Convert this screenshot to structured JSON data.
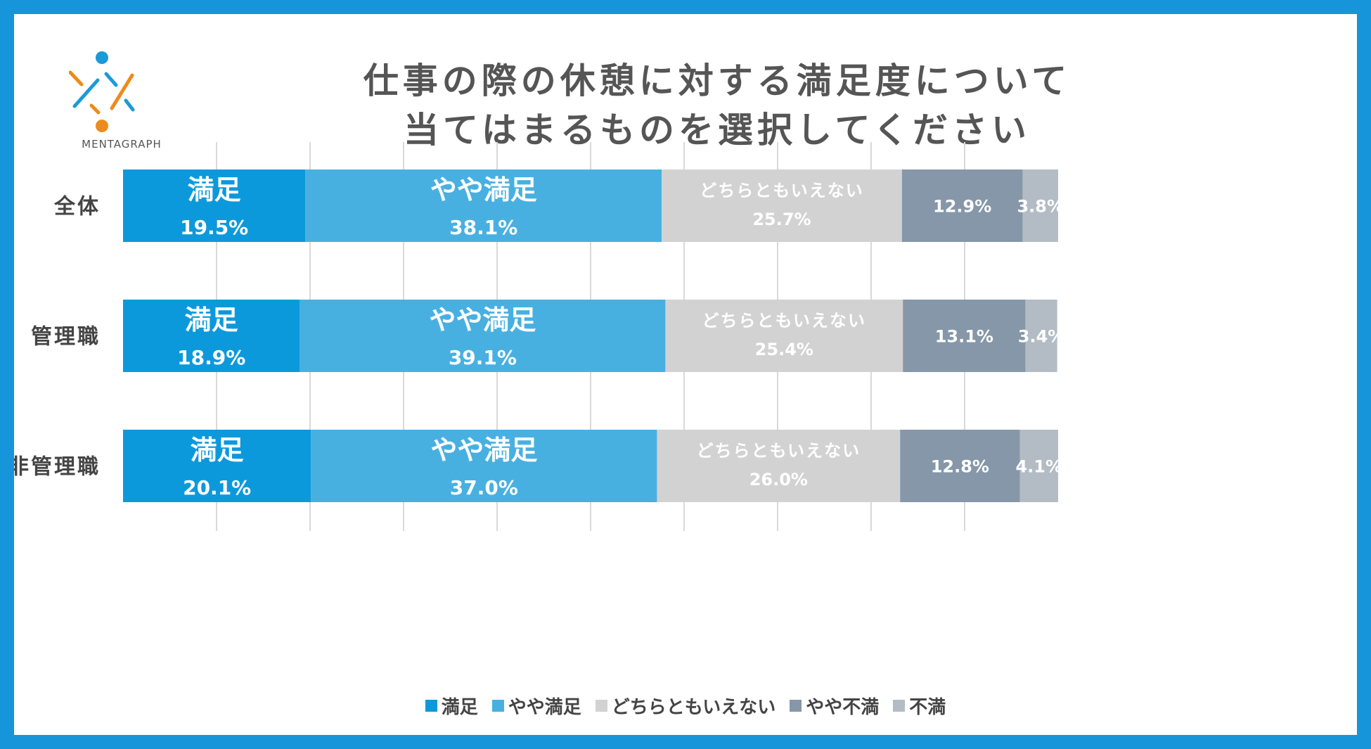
{
  "brand": {
    "name": "MENTAGRAPH",
    "colors": {
      "blue": "#1a9ad9",
      "orange": "#ec8c1c"
    }
  },
  "frame_color": "#1695db",
  "chart_data": {
    "type": "bar",
    "orientation": "horizontal",
    "stacked": true,
    "title": "仕事の際の休憩に対する満足度について\n当てはまるものを選択してください",
    "title_lines": [
      "仕事の際の休憩に対する満足度について",
      "当てはまるものを選択してください"
    ],
    "categories": [
      "全体",
      "管理職",
      "非管理職"
    ],
    "xlim": [
      0,
      100
    ],
    "grid": true,
    "legend_position": "bottom",
    "series": [
      {
        "name": "満足",
        "values": [
          19.5,
          18.9,
          20.1
        ],
        "color": "#0c99dc",
        "label_color": "#ffffff",
        "show_name_in_bar": true
      },
      {
        "name": "やや満足",
        "values": [
          38.1,
          39.1,
          37.0
        ],
        "color": "#48b0e1",
        "label_color": "#ffffff",
        "show_name_in_bar": true
      },
      {
        "name": "どちらともいえない",
        "values": [
          25.7,
          25.4,
          26.0
        ],
        "color": "#d2d2d2",
        "label_color": "#ffffff",
        "show_name_in_bar": true
      },
      {
        "name": "やや不満",
        "values": [
          12.9,
          13.1,
          12.8
        ],
        "color": "#8597a8",
        "label_color": "#ffffff",
        "show_name_in_bar": false
      },
      {
        "name": "不満",
        "values": [
          3.8,
          3.4,
          4.1
        ],
        "color": "#b3bcc5",
        "label_color": "#ffffff",
        "show_name_in_bar": false
      }
    ]
  }
}
